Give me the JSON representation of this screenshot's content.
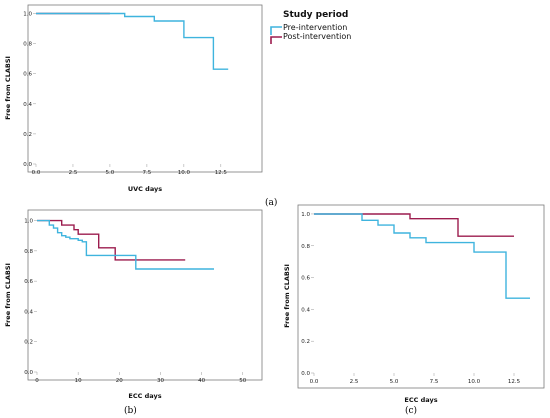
{
  "legend": {
    "title": "Study period",
    "entries": [
      {
        "label": "Pre-intervention",
        "color": "#3fb4de"
      },
      {
        "label": "Post-intervention",
        "color": "#9c1c4e"
      }
    ]
  },
  "chart_data": [
    {
      "type": "line",
      "panel_label": "(a)",
      "xlabel": "UVC days",
      "ylabel": "Free from CLABSI",
      "xlim": [
        0,
        14
      ],
      "ylim": [
        0,
        1.05
      ],
      "xticks": [
        "0.0",
        "2.5",
        "5.0",
        "7.5",
        "10.0",
        "12.5"
      ],
      "yticks": [
        "0.0",
        "0.2",
        "0.4",
        "0.6",
        "0.8",
        "1.0"
      ],
      "step": true,
      "series": [
        {
          "name": "Pre-intervention",
          "color": "#3fb4de",
          "x": [
            0,
            6,
            8,
            10,
            12,
            13
          ],
          "y": [
            1.0,
            0.98,
            0.95,
            0.84,
            0.63,
            0.63
          ]
        },
        {
          "name": "Post-intervention",
          "color": "#9c1c4e",
          "x": [
            0,
            5
          ],
          "y": [
            1.0,
            1.0
          ]
        }
      ]
    },
    {
      "type": "line",
      "panel_label": "(b)",
      "xlabel": "ECC days",
      "ylabel": "Free from CLABSI",
      "xlim": [
        0,
        52
      ],
      "ylim": [
        0,
        1.05
      ],
      "xticks": [
        "0",
        "10",
        "20",
        "30",
        "40",
        "50"
      ],
      "yticks": [
        "0.0",
        "0.2",
        "0.4",
        "0.6",
        "0.8",
        "1.0"
      ],
      "step": true,
      "series": [
        {
          "name": "Pre-intervention",
          "color": "#3fb4de",
          "x": [
            0,
            3,
            4,
            5,
            6,
            7,
            8,
            10,
            11,
            12,
            24,
            43
          ],
          "y": [
            1.0,
            0.97,
            0.95,
            0.92,
            0.9,
            0.89,
            0.88,
            0.87,
            0.86,
            0.77,
            0.68,
            0.68
          ]
        },
        {
          "name": "Post-intervention",
          "color": "#9c1c4e",
          "x": [
            0,
            6,
            9,
            10,
            15,
            19,
            36
          ],
          "y": [
            1.0,
            0.97,
            0.94,
            0.91,
            0.82,
            0.74,
            0.74
          ]
        }
      ]
    },
    {
      "type": "line",
      "panel_label": "(c)",
      "xlabel": "ECC days",
      "ylabel": "Free from CLABSI",
      "xlim": [
        0,
        14
      ],
      "ylim": [
        0,
        1.05
      ],
      "xticks": [
        "0.0",
        "2.5",
        "5.0",
        "7.5",
        "10.0",
        "12.5"
      ],
      "yticks": [
        "0.0",
        "0.2",
        "0.4",
        "0.6",
        "0.8",
        "1.0"
      ],
      "step": true,
      "series": [
        {
          "name": "Pre-intervention",
          "color": "#3fb4de",
          "x": [
            0,
            3,
            4,
            5,
            6,
            7,
            10,
            12,
            13.5
          ],
          "y": [
            1.0,
            0.96,
            0.93,
            0.88,
            0.85,
            0.82,
            0.76,
            0.47,
            0.47
          ]
        },
        {
          "name": "Post-intervention",
          "color": "#9c1c4e",
          "x": [
            0,
            6,
            9,
            12.5
          ],
          "y": [
            1.0,
            0.97,
            0.86,
            0.86
          ]
        }
      ]
    }
  ]
}
